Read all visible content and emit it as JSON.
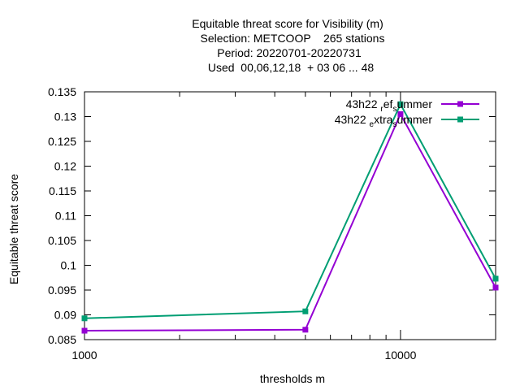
{
  "chart_data": {
    "type": "line",
    "title_lines": [
      "Equitable threat score  for Visibility (m)",
      "Selection: METCOOP    265 stations",
      "Period: 20220701-20220731",
      "Used  00,06,12,18  + 03 06 ... 48"
    ],
    "xlabel": "thresholds m",
    "ylabel": "Equitable threat score",
    "x_scale": "log",
    "xlim": [
      1000,
      20000
    ],
    "ylim": [
      0.085,
      0.135
    ],
    "x_ticks": [
      1000,
      10000
    ],
    "x_tick_labels": [
      "1000",
      "10000"
    ],
    "x_minor_ticks": [
      2000,
      3000,
      4000,
      5000,
      6000,
      7000,
      8000,
      9000,
      20000
    ],
    "y_ticks": [
      0.085,
      0.09,
      0.095,
      0.1,
      0.105,
      0.11,
      0.115,
      0.12,
      0.125,
      0.13,
      0.135
    ],
    "y_tick_labels": [
      "0.085",
      "0.09",
      "0.095",
      "0.1",
      "0.105",
      "0.11",
      "0.115",
      "0.12",
      "0.125",
      "0.13",
      "0.135"
    ],
    "grid": false,
    "legend_position": "top-right",
    "series": [
      {
        "name_parts": [
          "43h22",
          "r",
          "ef",
          "s",
          "ummer"
        ],
        "color": "#9400d3",
        "x": [
          1000,
          5000,
          10000,
          20000
        ],
        "y": [
          0.0868,
          0.087,
          0.1305,
          0.0955
        ]
      },
      {
        "name_parts": [
          "43h22",
          "e",
          "xtra",
          "s",
          "ummer"
        ],
        "color": "#009e73",
        "x": [
          1000,
          5000,
          10000,
          20000
        ],
        "y": [
          0.0893,
          0.0907,
          0.1325,
          0.0973
        ]
      }
    ]
  }
}
